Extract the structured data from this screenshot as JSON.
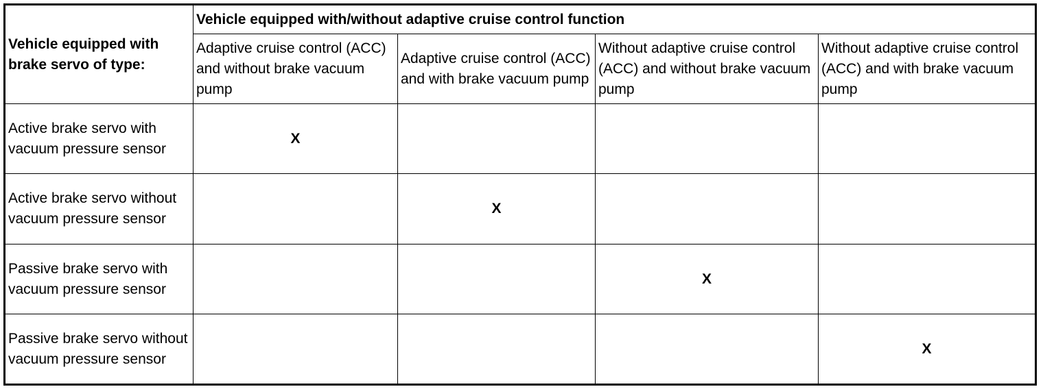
{
  "table": {
    "corner_header": "Vehicle equipped with brake servo of type:",
    "group_header": "Vehicle equipped with/without adaptive cruise control function",
    "columns": [
      "Adaptive cruise control (ACC) and without brake vacuum pump",
      "Adaptive cruise control (ACC) and with brake vacuum pump",
      "Without adaptive cruise control (ACC) and without brake vacuum pump",
      "Without adaptive cruise control (ACC) and with brake vacuum pump"
    ],
    "rows": [
      {
        "label": "Active brake servo with vacuum pressure sensor",
        "cells": [
          "X",
          "",
          "",
          ""
        ]
      },
      {
        "label": "Active brake servo without vacuum pressure sensor",
        "cells": [
          "",
          "X",
          "",
          ""
        ]
      },
      {
        "label": "Passive brake servo with vacuum pressure sensor",
        "cells": [
          "",
          "",
          "X",
          ""
        ]
      },
      {
        "label": "Passive brake servo without vacuum pressure sensor",
        "cells": [
          "",
          "",
          "",
          "X"
        ]
      }
    ]
  }
}
